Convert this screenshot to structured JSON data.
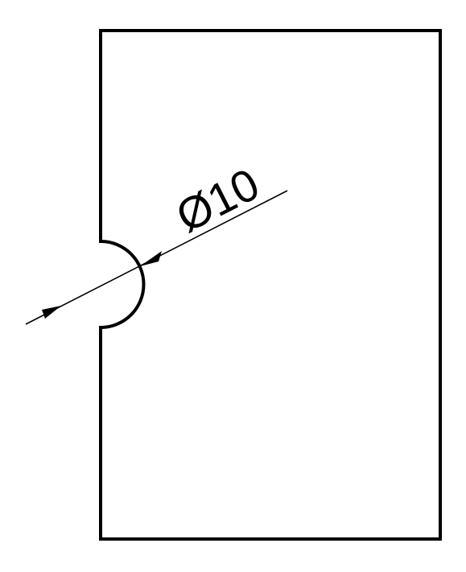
{
  "dimension": {
    "text": "Ø10"
  },
  "colors": {
    "stroke": "#000000",
    "background": "#ffffff"
  }
}
